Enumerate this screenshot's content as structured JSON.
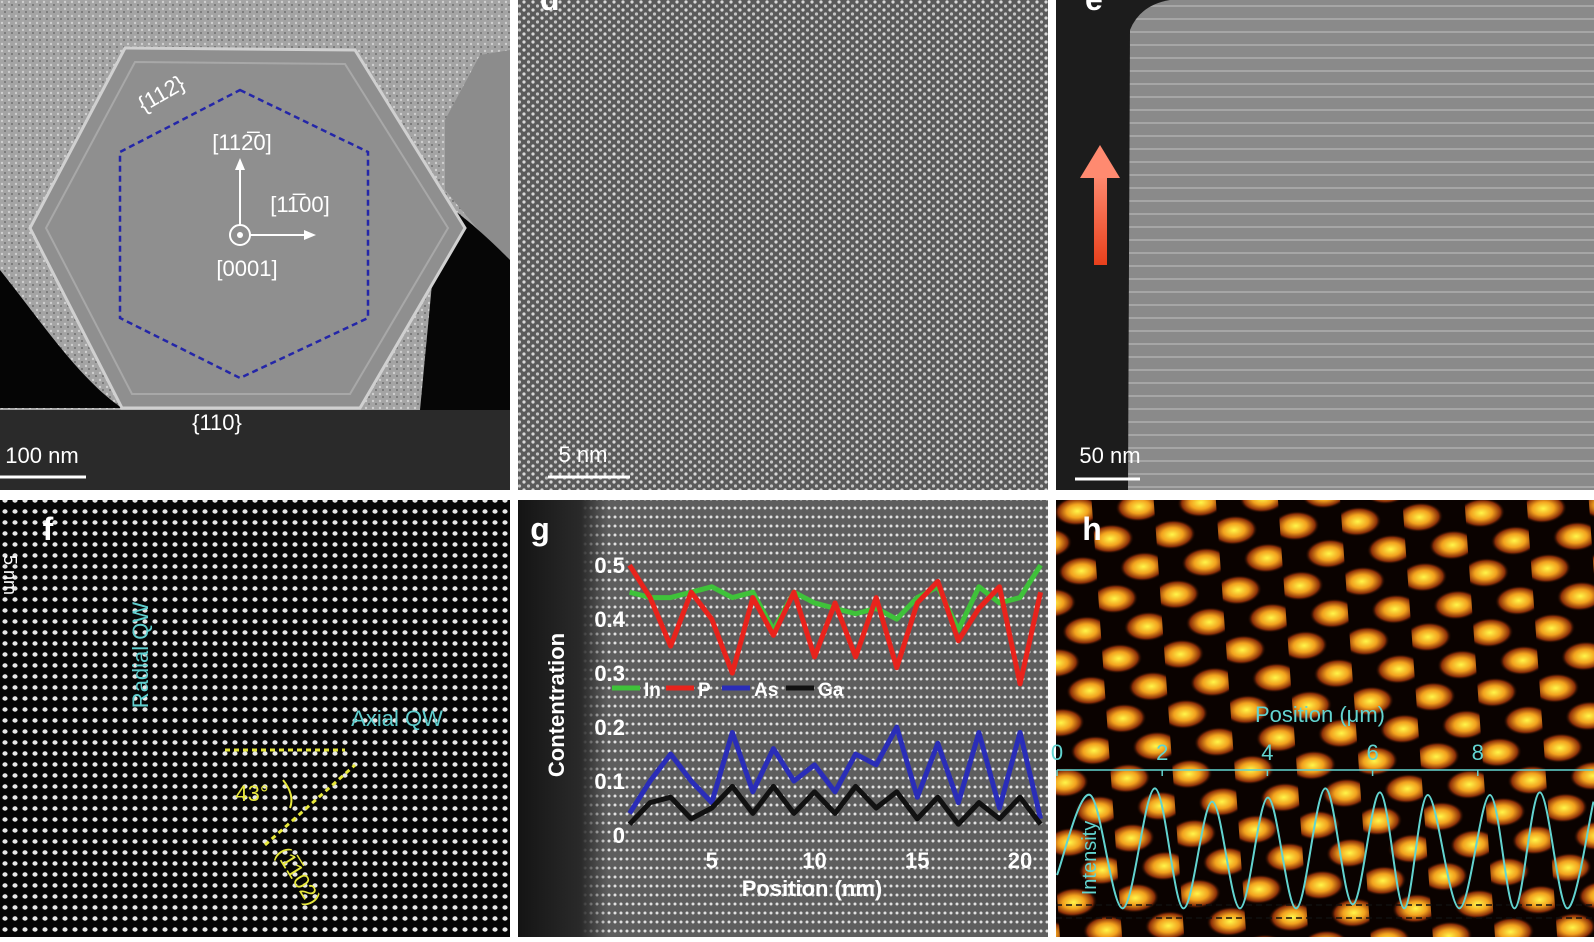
{
  "panels": {
    "c": {
      "facet_top": "{112}",
      "direction_y": "[112̅0]",
      "direction_x": "[11̅00]",
      "direction_z": "[0001]",
      "facet_bottom": "{110}",
      "scale_bar": "100 nm"
    },
    "d": {
      "label": "d",
      "scale_bar": "5 nm"
    },
    "e": {
      "label": "e",
      "scale_bar": "50 nm"
    },
    "f": {
      "label": "f",
      "scale_bar": "5 nm",
      "radial": "Radial QW",
      "axial": "Axial QW",
      "angle": "43°",
      "plane": "(1̅102)"
    }
  },
  "chart_data": [
    {
      "type": "line",
      "label": "g",
      "xlabel": "Position (nm)",
      "ylabel": "Contentration",
      "x": [
        1,
        2,
        3,
        4,
        5,
        6,
        7,
        8,
        9,
        10,
        11,
        12,
        13,
        14,
        15,
        16,
        17,
        18,
        19,
        20,
        21
      ],
      "xlim": [
        0,
        21.2
      ],
      "xticks": [
        5,
        10,
        15,
        20
      ],
      "ylim": [
        0,
        0.53
      ],
      "yticks": [
        0,
        0.1,
        0.2,
        0.3,
        0.4,
        0.5
      ],
      "grid": false,
      "series": [
        {
          "name": "In",
          "color": "#3fc23a",
          "values": [
            0.45,
            0.44,
            0.44,
            0.45,
            0.46,
            0.44,
            0.45,
            0.38,
            0.45,
            0.43,
            0.42,
            0.41,
            0.42,
            0.4,
            0.44,
            0.46,
            0.38,
            0.46,
            0.43,
            0.44,
            0.5
          ]
        },
        {
          "name": "P",
          "color": "#e8231c",
          "values": [
            0.5,
            0.44,
            0.35,
            0.45,
            0.4,
            0.3,
            0.44,
            0.37,
            0.45,
            0.33,
            0.43,
            0.33,
            0.44,
            0.31,
            0.43,
            0.47,
            0.36,
            0.42,
            0.46,
            0.28,
            0.45
          ]
        },
        {
          "name": "As",
          "color": "#2a2db8",
          "values": [
            0.04,
            0.1,
            0.15,
            0.1,
            0.06,
            0.19,
            0.08,
            0.16,
            0.1,
            0.13,
            0.08,
            0.15,
            0.13,
            0.2,
            0.07,
            0.17,
            0.06,
            0.19,
            0.05,
            0.19,
            0.03
          ]
        },
        {
          "name": "Ga",
          "color": "#111111",
          "values": [
            0.02,
            0.06,
            0.07,
            0.03,
            0.05,
            0.09,
            0.04,
            0.09,
            0.04,
            0.08,
            0.04,
            0.09,
            0.05,
            0.08,
            0.03,
            0.07,
            0.02,
            0.06,
            0.03,
            0.07,
            0.02
          ]
        }
      ]
    },
    {
      "type": "line",
      "label": "h",
      "xlabel": "Position (μm)",
      "ylabel": "Intensity",
      "x": [
        0,
        0.63,
        1.25,
        1.86,
        2.4,
        2.95,
        3.48,
        4.01,
        4.55,
        5.1,
        5.62,
        6.14,
        6.6,
        7.05,
        7.65,
        8.23,
        8.7,
        9.18,
        9.7,
        10.2
      ],
      "xlim": [
        0,
        10.2
      ],
      "xticks": [
        0,
        2,
        4,
        6,
        8
      ],
      "ylim": [
        0,
        1.05
      ],
      "grid": false,
      "series": [
        {
          "color": "#62d4d0",
          "values": [
            0.3,
            0.9,
            0.05,
            0.95,
            0.05,
            0.85,
            0.05,
            0.88,
            0.05,
            0.95,
            0.08,
            0.92,
            0.05,
            0.9,
            0.05,
            0.9,
            0.05,
            0.92,
            0.05,
            0.85
          ]
        }
      ]
    }
  ]
}
